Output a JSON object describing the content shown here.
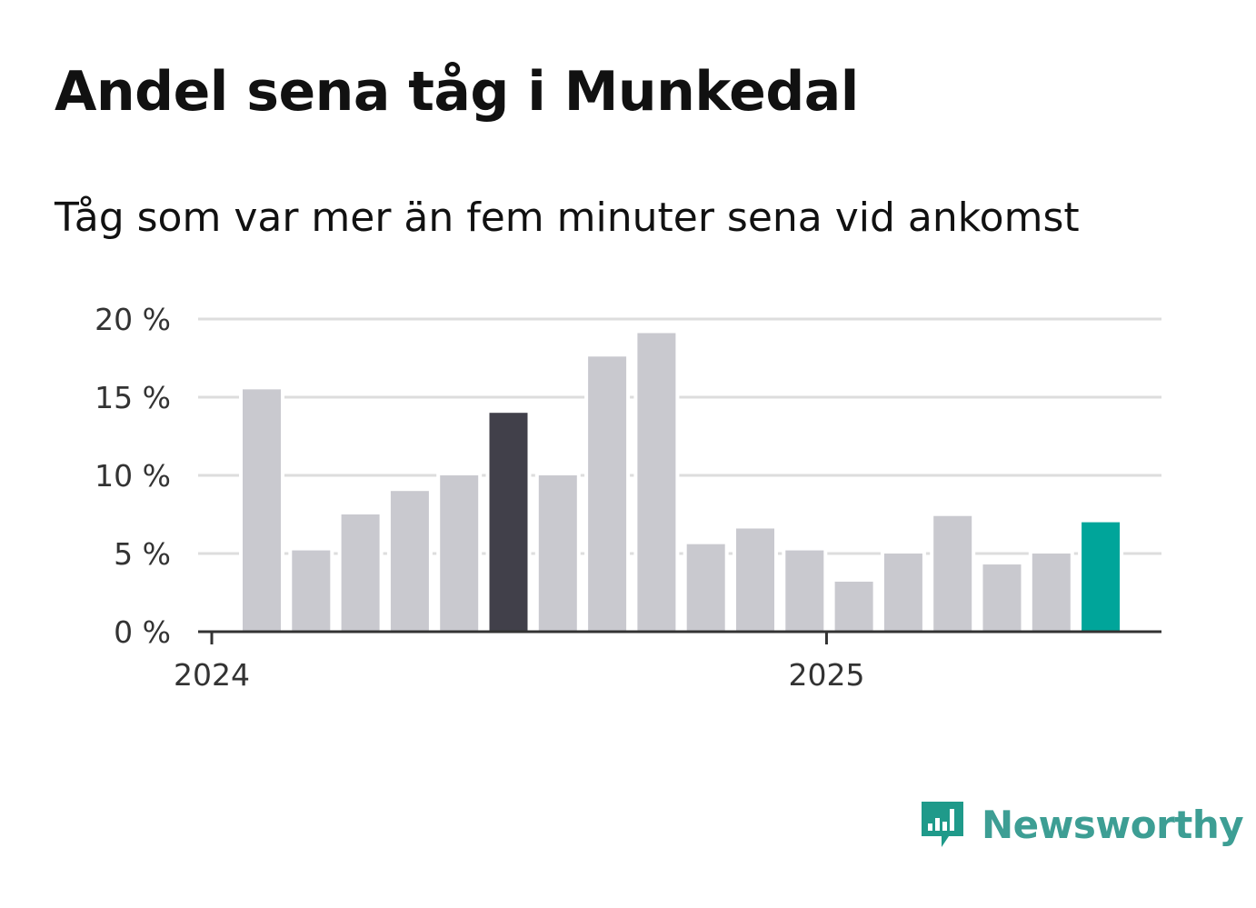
{
  "title": "Andel sena tåg i Munkedal",
  "subtitle": "Tåg som var mer än fem minuter sena vid ankomst",
  "brand": {
    "name": "Newsworthy",
    "icon": "bar-chart-speech-bubble-icon",
    "color": "#1f9a8a"
  },
  "colors": {
    "default_bar": "#c9c9cf",
    "highlight_bar": "#41404a",
    "latest_bar": "#00a59a",
    "grid": "#dddddd",
    "axis": "#333333"
  },
  "chart_data": {
    "type": "bar",
    "title": "Andel sena tåg i Munkedal",
    "subtitle": "Tåg som var mer än fem minuter sena vid ankomst",
    "xlabel": "",
    "ylabel": "",
    "ylim": [
      0,
      20
    ],
    "y_ticks": [
      0,
      5,
      10,
      15,
      20
    ],
    "y_tick_labels": [
      "0 %",
      "5 %",
      "10 %",
      "15 %",
      "20 %"
    ],
    "x_tick_labels": [
      "2024",
      "2025"
    ],
    "grid": true,
    "categories": [
      "2024-01",
      "2024-02",
      "2024-03",
      "2024-04",
      "2024-05",
      "2024-06",
      "2024-07",
      "2024-08",
      "2024-09",
      "2024-10",
      "2024-11",
      "2024-12",
      "2025-01",
      "2025-02",
      "2025-03",
      "2025-04",
      "2025-05",
      "2025-06"
    ],
    "values": [
      15.5,
      5.2,
      7.5,
      9.0,
      10.0,
      14.0,
      10.0,
      17.6,
      19.1,
      5.6,
      6.6,
      5.2,
      3.2,
      5.0,
      7.4,
      4.3,
      5.0,
      7.0
    ],
    "highlight": [
      {
        "category": "2024-06",
        "color": "#41404a"
      },
      {
        "category": "2025-06",
        "color": "#00a59a"
      }
    ]
  }
}
